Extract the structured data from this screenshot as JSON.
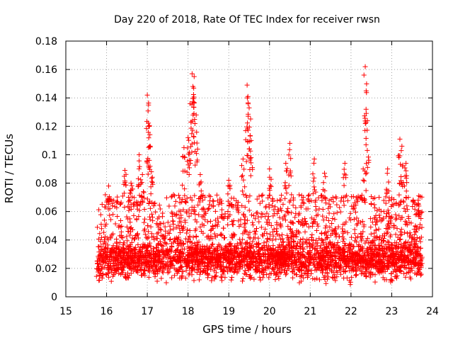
{
  "chart_data": {
    "type": "scatter",
    "title": "Day 220 of 2018, Rate Of TEC Index for receiver rwsn",
    "xlabel": "GPS time / hours",
    "ylabel": "ROTI / TECUs",
    "xlim": [
      15,
      24
    ],
    "ylim": [
      0,
      0.18
    ],
    "xticks": [
      "15",
      "16",
      "17",
      "18",
      "19",
      "20",
      "21",
      "22",
      "23",
      "24"
    ],
    "yticks": [
      "0",
      "0.02",
      "0.04",
      "0.06",
      "0.08",
      "0.1",
      "0.12",
      "0.14",
      "0.16",
      "0.18"
    ],
    "grid": true,
    "marker": "plus",
    "series": [
      {
        "name": "ROTI",
        "color": "#ff0000",
        "x_start": 15.75,
        "x_end": 23.75,
        "sample_count": 3600,
        "background_mean": 0.027,
        "background_spread": 0.011,
        "elevated_fraction": 0.22,
        "elevated_range": [
          0.04,
          0.072
        ],
        "spikes": [
          {
            "x": 16.05,
            "y": 0.078
          },
          {
            "x": 16.45,
            "y": 0.089
          },
          {
            "x": 16.6,
            "y": 0.08
          },
          {
            "x": 16.8,
            "y": 0.1
          },
          {
            "x": 16.88,
            "y": 0.086
          },
          {
            "x": 17.0,
            "y": 0.142
          },
          {
            "x": 17.03,
            "y": 0.135
          },
          {
            "x": 17.05,
            "y": 0.12
          },
          {
            "x": 17.1,
            "y": 0.088
          },
          {
            "x": 17.9,
            "y": 0.105
          },
          {
            "x": 18.0,
            "y": 0.112
          },
          {
            "x": 18.05,
            "y": 0.136
          },
          {
            "x": 18.1,
            "y": 0.157
          },
          {
            "x": 18.12,
            "y": 0.148
          },
          {
            "x": 18.15,
            "y": 0.155
          },
          {
            "x": 18.2,
            "y": 0.128
          },
          {
            "x": 18.3,
            "y": 0.086
          },
          {
            "x": 19.0,
            "y": 0.082
          },
          {
            "x": 19.35,
            "y": 0.097
          },
          {
            "x": 19.45,
            "y": 0.149
          },
          {
            "x": 19.47,
            "y": 0.141
          },
          {
            "x": 19.5,
            "y": 0.133
          },
          {
            "x": 19.55,
            "y": 0.11
          },
          {
            "x": 20.0,
            "y": 0.09
          },
          {
            "x": 20.4,
            "y": 0.094
          },
          {
            "x": 20.5,
            "y": 0.108
          },
          {
            "x": 21.1,
            "y": 0.097
          },
          {
            "x": 21.35,
            "y": 0.087
          },
          {
            "x": 21.85,
            "y": 0.094
          },
          {
            "x": 22.3,
            "y": 0.09
          },
          {
            "x": 22.35,
            "y": 0.162
          },
          {
            "x": 22.37,
            "y": 0.132
          },
          {
            "x": 22.4,
            "y": 0.103
          },
          {
            "x": 22.9,
            "y": 0.09
          },
          {
            "x": 23.2,
            "y": 0.111
          },
          {
            "x": 23.25,
            "y": 0.106
          },
          {
            "x": 23.35,
            "y": 0.094
          },
          {
            "x": 23.65,
            "y": 0.068
          }
        ]
      }
    ]
  }
}
